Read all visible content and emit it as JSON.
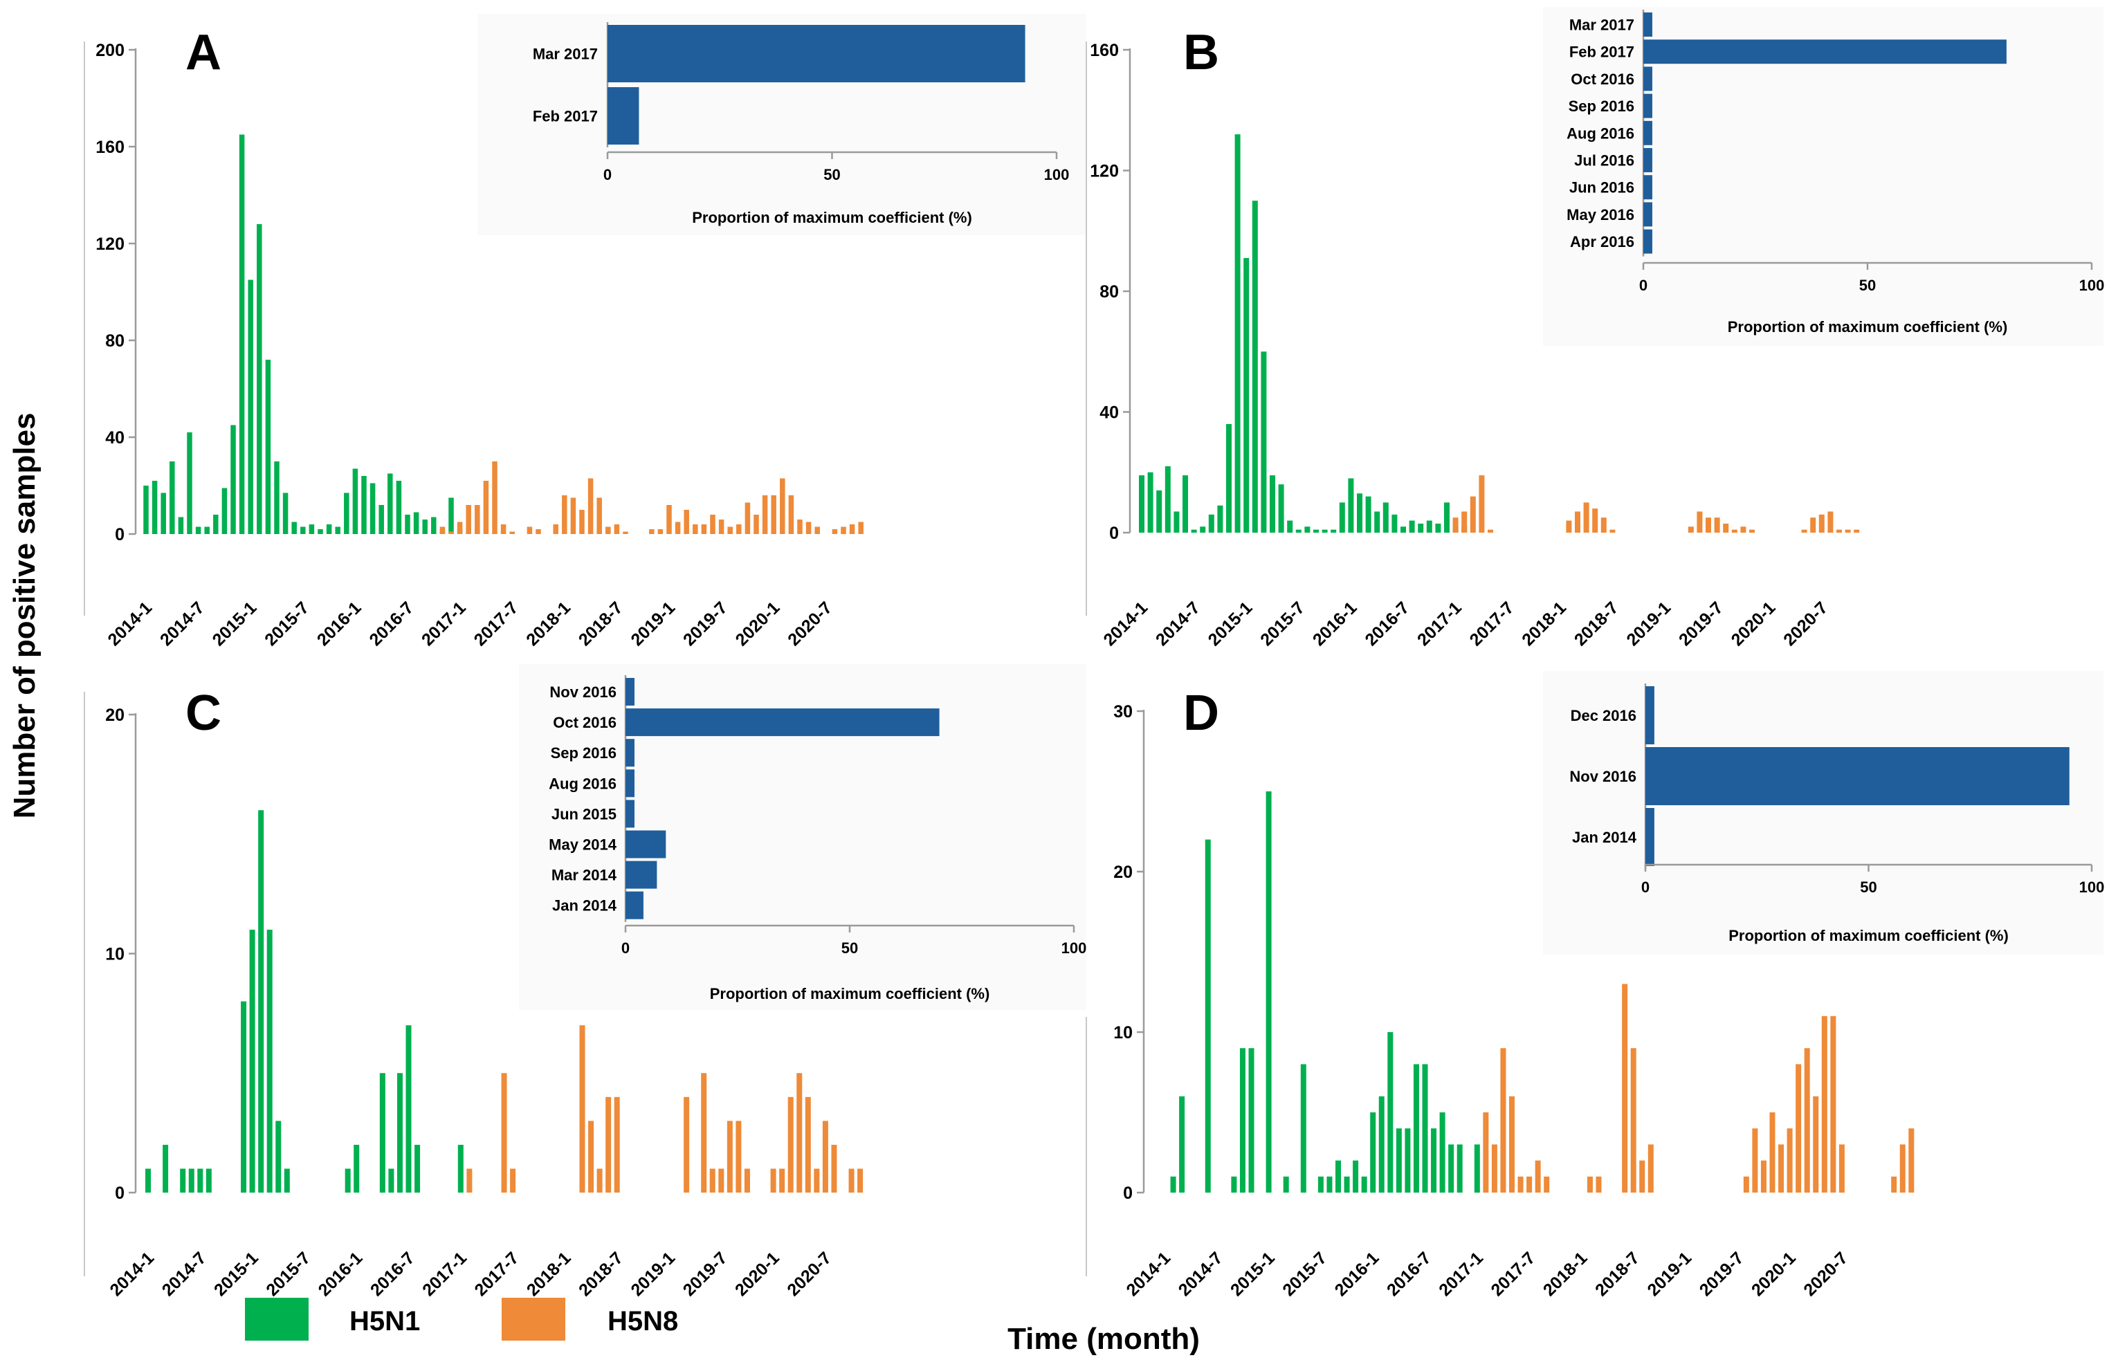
{
  "figure": {
    "ylabel": "Number of positive samples",
    "xlabel": "Time (month)",
    "legend": [
      {
        "label": "H5N1",
        "color": "#00b04f"
      },
      {
        "label": "H5N8",
        "color": "#ee8a38"
      }
    ],
    "inset_bar_color": "#1f5e9b"
  },
  "chart_data": [
    {
      "panel": "A",
      "type": "bar",
      "title": "A",
      "xlabel": "Time (month)",
      "ylabel": "Number of positive samples",
      "ylim": [
        0,
        200
      ],
      "yticks": [
        0,
        40,
        80,
        120,
        160,
        200
      ],
      "x_start": "2014-1",
      "xtick_labels": [
        "2014-1",
        "2014-7",
        "2015-1",
        "2015-7",
        "2016-1",
        "2016-7",
        "2017-1",
        "2017-7",
        "2018-1",
        "2018-7",
        "2019-1",
        "2019-7",
        "2020-1",
        "2020-7"
      ],
      "series": [
        {
          "name": "H5N1",
          "start_index": 0,
          "values": [
            20,
            22,
            17,
            30,
            7,
            42,
            3,
            3,
            8,
            19,
            45,
            165,
            105,
            128,
            72,
            30,
            17,
            5,
            3,
            4,
            2,
            4,
            3,
            17,
            27,
            24,
            21,
            12,
            25,
            22,
            8,
            9,
            6,
            7,
            2,
            15,
            2,
            3,
            2
          ]
        },
        {
          "name": "H5N8",
          "start_index": 34,
          "values": [
            3,
            1,
            5,
            12,
            12,
            22,
            30,
            4,
            1,
            0,
            3,
            2,
            0,
            4,
            16,
            15,
            10,
            23,
            15,
            3,
            4,
            1,
            0,
            0,
            2,
            2,
            12,
            5,
            10,
            4,
            4,
            8,
            6,
            3,
            4,
            13,
            8,
            16,
            16,
            23,
            16,
            6,
            5,
            3,
            0,
            2,
            3,
            4,
            5
          ]
        }
      ],
      "inset": {
        "title": "Proportion of maximum coefficient (%)",
        "xlim": [
          0,
          100
        ],
        "xticks": [
          0,
          50,
          100
        ],
        "categories": [
          "Mar 2017",
          "Feb 2017"
        ],
        "values": [
          93,
          7
        ]
      }
    },
    {
      "panel": "B",
      "type": "bar",
      "title": "B",
      "ylim": [
        0,
        160
      ],
      "yticks": [
        0,
        40,
        80,
        120,
        160
      ],
      "x_start": "2014-1",
      "xtick_labels": [
        "2014-1",
        "2014-7",
        "2015-1",
        "2015-7",
        "2016-1",
        "2016-7",
        "2017-1",
        "2017-7",
        "2018-1",
        "2018-7",
        "2019-1",
        "2019-7",
        "2020-1",
        "2020-7"
      ],
      "series": [
        {
          "name": "H5N1",
          "start_index": 0,
          "values": [
            19,
            20,
            14,
            22,
            7,
            19,
            1,
            2,
            6,
            9,
            36,
            132,
            91,
            110,
            60,
            19,
            16,
            4,
            1,
            2,
            1,
            1,
            1,
            10,
            18,
            13,
            12,
            7,
            10,
            6,
            2,
            4,
            3,
            4,
            3,
            10,
            2,
            2
          ]
        },
        {
          "name": "H5N8",
          "start_index": 36,
          "values": [
            5,
            7,
            12,
            19,
            1,
            0,
            0,
            0,
            0,
            0,
            0,
            0,
            0,
            4,
            7,
            10,
            8,
            5,
            1,
            0,
            0,
            0,
            0,
            0,
            0,
            0,
            0,
            2,
            7,
            5,
            5,
            3,
            1,
            2,
            1,
            0,
            0,
            0,
            0,
            0,
            1,
            5,
            6,
            7,
            1,
            1,
            1
          ]
        }
      ],
      "inset": {
        "title": "Proportion of maximum coefficient (%)",
        "xlim": [
          0,
          100
        ],
        "xticks": [
          0,
          50,
          100
        ],
        "categories": [
          "Mar 2017",
          "Feb 2017",
          "Oct 2016",
          "Sep 2016",
          "Aug 2016",
          "Jul 2016",
          "Jun 2016",
          "May 2016",
          "Apr 2016"
        ],
        "values": [
          2,
          81,
          2,
          2,
          2,
          2,
          2,
          2,
          2
        ]
      }
    },
    {
      "panel": "C",
      "type": "bar",
      "title": "C",
      "ylim": [
        0,
        20
      ],
      "yticks": [
        0,
        10,
        20
      ],
      "x_start": "2014-1",
      "xtick_labels": [
        "2014-1",
        "2014-7",
        "2015-1",
        "2015-7",
        "2016-1",
        "2016-7",
        "2017-1",
        "2017-7",
        "2018-1",
        "2018-7",
        "2019-1",
        "2019-7",
        "2020-1",
        "2020-7"
      ],
      "series": [
        {
          "name": "H5N1",
          "start_index": 0,
          "values": [
            1,
            0,
            2,
            0,
            1,
            1,
            1,
            1,
            0,
            0,
            0,
            8,
            11,
            16,
            11,
            3,
            1,
            0,
            0,
            0,
            0,
            0,
            0,
            1,
            2,
            0,
            0,
            5,
            1,
            5,
            7,
            2,
            0,
            0,
            0,
            0,
            2
          ]
        },
        {
          "name": "H5N8",
          "start_index": 37,
          "values": [
            1,
            0,
            0,
            0,
            5,
            1,
            0,
            0,
            0,
            0,
            0,
            0,
            0,
            7,
            3,
            1,
            4,
            4,
            0,
            0,
            0,
            0,
            0,
            0,
            0,
            4,
            0,
            5,
            1,
            1,
            3,
            3,
            1,
            0,
            0,
            1,
            1,
            4,
            5,
            4,
            1,
            3,
            2,
            0,
            1,
            1
          ]
        }
      ],
      "inset": {
        "title": "Proportion of maximum coefficient (%)",
        "xlim": [
          0,
          100
        ],
        "xticks": [
          0,
          50,
          100
        ],
        "categories": [
          "Nov 2016",
          "Oct 2016",
          "Sep 2016",
          "Aug 2016",
          "Jun 2015",
          "May 2014",
          "Mar 2014",
          "Jan 2014"
        ],
        "values": [
          2,
          70,
          2,
          2,
          2,
          9,
          7,
          4
        ]
      }
    },
    {
      "panel": "D",
      "type": "bar",
      "title": "D",
      "ylim": [
        0,
        30
      ],
      "yticks": [
        0,
        10,
        20,
        30
      ],
      "x_start": "2014-1",
      "xtick_labels": [
        "2014-1",
        "2014-7",
        "2015-1",
        "2015-7",
        "2016-1",
        "2016-7",
        "2017-1",
        "2017-7",
        "2018-1",
        "2018-7",
        "2019-1",
        "2019-7",
        "2020-1",
        "2020-7"
      ],
      "series": [
        {
          "name": "H5N1",
          "start_index": 0,
          "values": [
            0,
            1,
            6,
            0,
            0,
            22,
            0,
            0,
            1,
            9,
            9,
            0,
            25,
            0,
            1,
            0,
            8,
            0,
            1,
            1,
            2,
            1,
            2,
            1,
            5,
            6,
            10,
            4,
            4,
            8,
            8,
            4,
            5,
            3,
            3,
            0,
            3
          ]
        },
        {
          "name": "H5N8",
          "start_index": 37,
          "values": [
            5,
            3,
            9,
            6,
            1,
            1,
            2,
            1,
            0,
            0,
            0,
            0,
            1,
            1,
            0,
            0,
            13,
            9,
            2,
            3,
            0,
            0,
            0,
            0,
            0,
            0,
            0,
            0,
            0,
            0,
            1,
            4,
            2,
            5,
            3,
            4,
            8,
            9,
            6,
            11,
            11,
            3,
            0,
            0,
            0,
            0,
            0,
            1,
            3,
            4
          ]
        }
      ],
      "inset": {
        "title": "Proportion of maximum coefficient (%)",
        "xlim": [
          0,
          100
        ],
        "xticks": [
          0,
          50,
          100
        ],
        "categories": [
          "Dec 2016",
          "Nov 2016",
          "Jan 2014"
        ],
        "values": [
          2,
          95,
          2
        ]
      }
    }
  ]
}
